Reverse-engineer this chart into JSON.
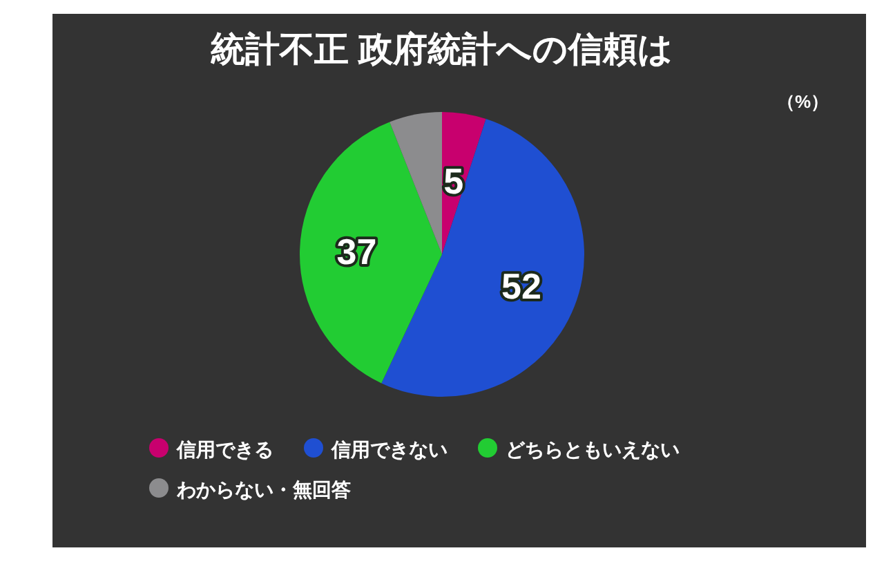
{
  "chart_data": {
    "type": "pie",
    "title": "統計不正 政府統計への信頼は",
    "categories": [
      "信用できる",
      "信用できない",
      "どちらともいえない",
      "わからない・無回答"
    ],
    "values": [
      5,
      52,
      37,
      6
    ],
    "colors": [
      "#c8006e",
      "#1f4fd2",
      "#22cc33",
      "#8c8c8e"
    ],
    "value_labels": [
      "5",
      "52",
      "37",
      null
    ],
    "annotations": [
      "（%）"
    ],
    "legend": "bottom"
  }
}
